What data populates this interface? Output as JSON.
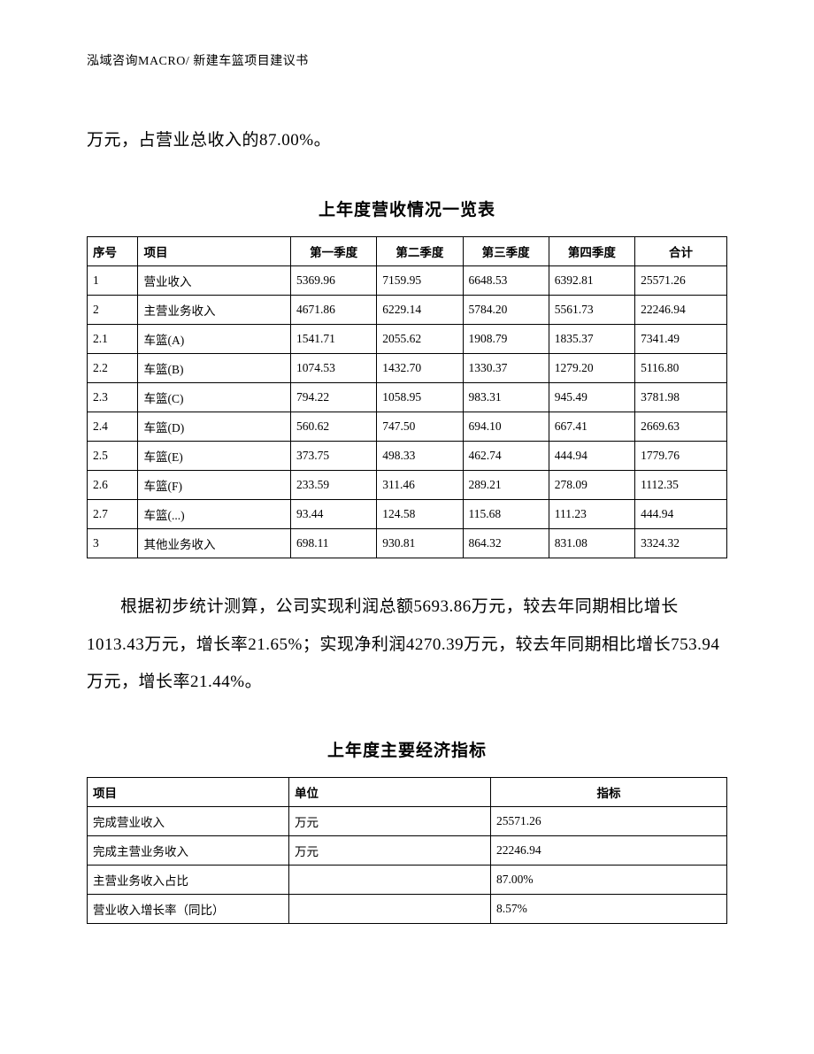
{
  "header": "泓域咨询MACRO/    新建车篮项目建议书",
  "intro": "万元，占营业总收入的87.00%。",
  "table1": {
    "title": "上年度营收情况一览表",
    "columns": [
      "序号",
      "项目",
      "第一季度",
      "第二季度",
      "第三季度",
      "第四季度",
      "合计"
    ],
    "rows": [
      [
        "1",
        "营业收入",
        "5369.96",
        "7159.95",
        "6648.53",
        "6392.81",
        "25571.26"
      ],
      [
        "2",
        "主营业务收入",
        "4671.86",
        "6229.14",
        "5784.20",
        "5561.73",
        "22246.94"
      ],
      [
        "2.1",
        "车篮(A)",
        "1541.71",
        "2055.62",
        "1908.79",
        "1835.37",
        "7341.49"
      ],
      [
        "2.2",
        "车篮(B)",
        "1074.53",
        "1432.70",
        "1330.37",
        "1279.20",
        "5116.80"
      ],
      [
        "2.3",
        "车篮(C)",
        "794.22",
        "1058.95",
        "983.31",
        "945.49",
        "3781.98"
      ],
      [
        "2.4",
        "车篮(D)",
        "560.62",
        "747.50",
        "694.10",
        "667.41",
        "2669.63"
      ],
      [
        "2.5",
        "车篮(E)",
        "373.75",
        "498.33",
        "462.74",
        "444.94",
        "1779.76"
      ],
      [
        "2.6",
        "车篮(F)",
        "233.59",
        "311.46",
        "289.21",
        "278.09",
        "1112.35"
      ],
      [
        "2.7",
        "车篮(...)",
        "93.44",
        "124.58",
        "115.68",
        "111.23",
        "444.94"
      ],
      [
        "3",
        "其他业务收入",
        "698.11",
        "930.81",
        "864.32",
        "831.08",
        "3324.32"
      ]
    ]
  },
  "body": "根据初步统计测算，公司实现利润总额5693.86万元，较去年同期相比增长1013.43万元，增长率21.65%；实现净利润4270.39万元，较去年同期相比增长753.94万元，增长率21.44%。",
  "table2": {
    "title": "上年度主要经济指标",
    "columns": [
      "项目",
      "单位",
      "指标"
    ],
    "rows": [
      [
        "完成营业收入",
        "万元",
        "25571.26"
      ],
      [
        "完成主营业务收入",
        "万元",
        "22246.94"
      ],
      [
        "主营业务收入占比",
        "",
        "87.00%"
      ],
      [
        "营业收入增长率（同比）",
        "",
        "8.57%"
      ]
    ]
  }
}
